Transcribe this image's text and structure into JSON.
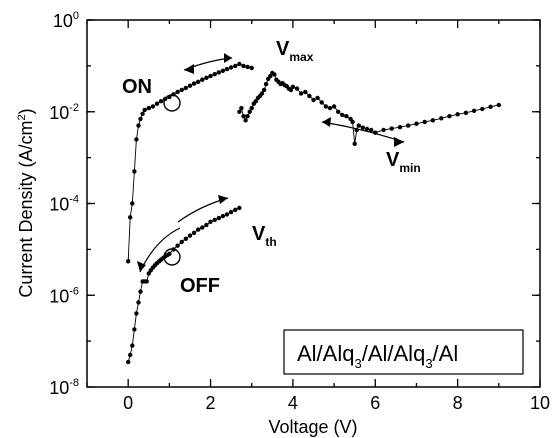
{
  "chart_data": {
    "type": "scatter",
    "xlabel": "Voltage (V)",
    "ylabel": "Current Density (A/cm",
    "ylabel_sup": "2",
    "ylabel_close": ")",
    "xlim": [
      -1,
      10
    ],
    "ylim": [
      1e-08,
      1
    ],
    "y_scale": "log",
    "x_ticks": [
      0,
      2,
      4,
      6,
      8,
      10
    ],
    "x_tick_labels": [
      "0",
      "2",
      "4",
      "6",
      "8",
      "10"
    ],
    "y_ticks": [
      1,
      0.01,
      0.0001,
      1e-06,
      1e-08
    ],
    "y_tick_base": "10",
    "y_tick_exponents": [
      "0",
      "-2",
      "-4",
      "-6",
      "-8"
    ],
    "legend_box": {
      "parts": [
        "Al/Alq",
        "3",
        "/Al/Alq",
        "3",
        "/Al"
      ]
    },
    "annotations": {
      "on": "ON",
      "off": "OFF",
      "vmax_main": "V",
      "vmax_sub": "max",
      "vmin_main": "V",
      "vmin_sub": "min",
      "vth_main": "V",
      "vth_sub": "th"
    },
    "series": [
      {
        "style": "markers+line",
        "x": [
          0.0,
          0.05,
          0.1,
          0.15,
          0.2,
          0.25,
          0.3,
          0.35,
          0.4,
          0.45,
          0.5,
          0.55,
          0.6,
          0.65,
          0.7,
          0.75,
          0.8,
          0.85,
          0.9,
          0.95,
          1.0,
          1.1,
          1.2,
          1.3,
          1.4,
          1.5,
          1.6,
          1.7,
          1.8,
          1.9,
          2.0,
          2.1,
          2.2,
          2.3,
          2.4,
          2.5,
          2.6,
          2.7
        ],
        "y": [
          3.5e-08,
          5e-08,
          8e-08,
          1.8e-07,
          4e-07,
          7e-07,
          1.2e-06,
          2e-06,
          2e-06,
          2e-06,
          3e-06,
          3.5e-06,
          4e-06,
          4.5e-06,
          5e-06,
          5.5e-06,
          6e-06,
          6.5e-06,
          7e-06,
          7.5e-06,
          8e-06,
          1e-05,
          1.2e-05,
          1.45e-05,
          1.7e-05,
          2e-05,
          2.3e-05,
          2.7e-05,
          3e-05,
          3.4e-05,
          4e-05,
          4.4e-05,
          4.8e-05,
          5.3e-05,
          5.8e-05,
          6.5e-05,
          7.3e-05,
          8e-05
        ]
      },
      {
        "style": "markers+line",
        "x": [
          2.7,
          2.75,
          2.8,
          2.85,
          2.9,
          2.95,
          3.0,
          3.05,
          3.1,
          3.15,
          3.2,
          3.25,
          3.3,
          3.35,
          3.4,
          3.45,
          3.5,
          3.55,
          3.6,
          3.65,
          3.7,
          3.75,
          3.8,
          3.85,
          3.9,
          3.95,
          4.0,
          4.1,
          4.2,
          4.3,
          4.4,
          4.5,
          4.6,
          4.7,
          4.8,
          4.9,
          5.0,
          5.1,
          5.2,
          5.3,
          5.4,
          5.45,
          5.5,
          5.55,
          5.6,
          5.7,
          5.8,
          5.9,
          6.0,
          6.2,
          6.4,
          6.6,
          6.8,
          7.0,
          7.2,
          7.4,
          7.6,
          7.8,
          8.0,
          8.2,
          8.4,
          8.6,
          8.8,
          9.0
        ],
        "y": [
          0.01,
          0.012,
          0.008,
          0.0065,
          0.008,
          0.01,
          0.012,
          0.015,
          0.017,
          0.02,
          0.022,
          0.025,
          0.03,
          0.04,
          0.052,
          0.06,
          0.07,
          0.065,
          0.05,
          0.045,
          0.04,
          0.042,
          0.038,
          0.036,
          0.032,
          0.03,
          0.035,
          0.032,
          0.025,
          0.027,
          0.022,
          0.018,
          0.02,
          0.016,
          0.013,
          0.012,
          0.013,
          0.01,
          0.0085,
          0.008,
          0.007,
          0.006,
          0.002,
          0.004,
          0.005,
          0.0045,
          0.0042,
          0.004,
          0.0035,
          0.004,
          0.0043,
          0.0046,
          0.005,
          0.0055,
          0.006,
          0.0065,
          0.0072,
          0.008,
          0.0088,
          0.0095,
          0.0105,
          0.0115,
          0.0128,
          0.014
        ]
      },
      {
        "style": "markers+line",
        "x": [
          3.0,
          2.9,
          2.8,
          2.7,
          2.6,
          2.5,
          2.4,
          2.3,
          2.2,
          2.1,
          2.0,
          1.9,
          1.8,
          1.7,
          1.6,
          1.5,
          1.4,
          1.3,
          1.2,
          1.1,
          1.0,
          0.9,
          0.8,
          0.7,
          0.6,
          0.5,
          0.4,
          0.35,
          0.3,
          0.25,
          0.2,
          0.15,
          0.1,
          0.05,
          0.0
        ],
        "y": [
          0.09,
          0.095,
          0.1,
          0.11,
          0.1,
          0.092,
          0.085,
          0.078,
          0.072,
          0.066,
          0.06,
          0.055,
          0.05,
          0.045,
          0.041,
          0.037,
          0.033,
          0.03,
          0.027,
          0.024,
          0.021,
          0.019,
          0.017,
          0.015,
          0.013,
          0.012,
          0.011,
          0.009,
          0.007,
          0.005,
          0.0025,
          0.0005,
          0.0001,
          5e-05,
          5.5e-06
        ]
      }
    ]
  }
}
